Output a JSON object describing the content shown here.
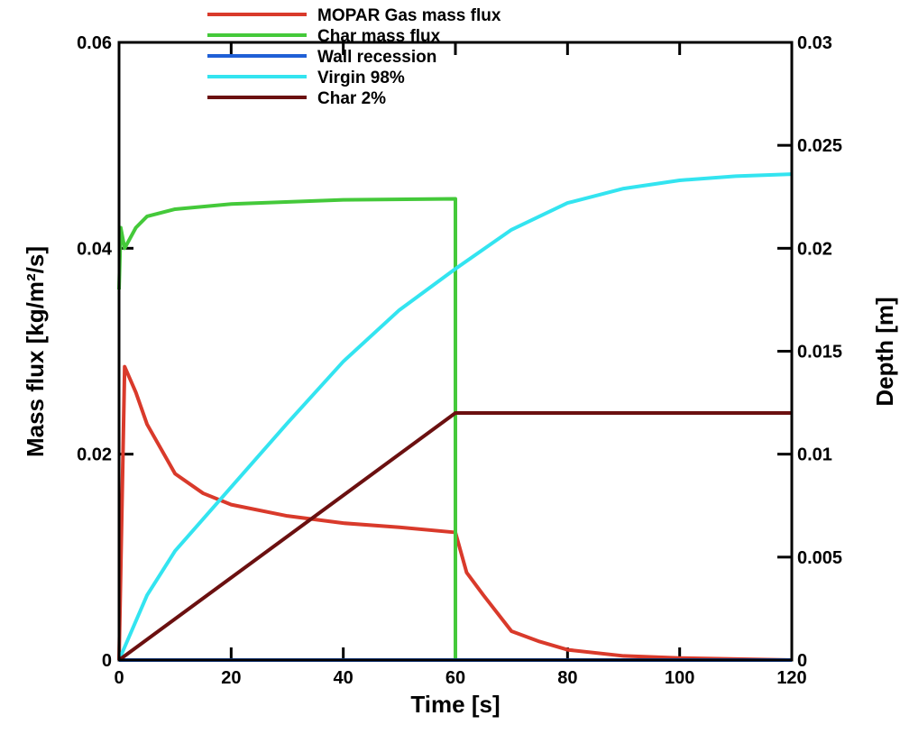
{
  "chart_data": {
    "type": "line",
    "x_label": "Time [s]",
    "y_label": "Mass flux [kg/m²/s]",
    "y2_label": "Depth [m]",
    "xlim": [
      0,
      120
    ],
    "xticks": [
      0,
      20,
      40,
      60,
      80,
      100,
      120
    ],
    "ylim": [
      0,
      0.06
    ],
    "yticks": [
      0,
      0.02,
      0.04,
      0.06
    ],
    "y2lim": [
      0,
      0.03
    ],
    "y2ticks": [
      0,
      0.005,
      0.01,
      0.015,
      0.02,
      0.025,
      0.03
    ],
    "legend": "top",
    "series": [
      {
        "name": "MOPAR Gas mass flux",
        "color": "#d93a2b",
        "x": [
          0,
          1,
          3,
          5,
          10,
          15,
          20,
          30,
          40,
          50,
          60,
          62,
          65,
          70,
          75,
          80,
          90,
          100,
          120
        ],
        "values": [
          0,
          0.0285,
          0.026,
          0.0229,
          0.0181,
          0.0162,
          0.0151,
          0.014,
          0.0133,
          0.0129,
          0.0124,
          0.0085,
          0.0063,
          0.0028,
          0.0018,
          0.001,
          0.0004,
          0.0002,
          0
        ]
      },
      {
        "name": "Char mass flux",
        "color": "#44c93a",
        "x": [
          0,
          0.3,
          1,
          3,
          5,
          10,
          20,
          40,
          60,
          60
        ],
        "values": [
          0.036,
          0.042,
          0.04,
          0.042,
          0.0431,
          0.0438,
          0.0443,
          0.0447,
          0.0448,
          0
        ]
      },
      {
        "name": "Wall recession",
        "color": "#1f5fd6",
        "axis": "y2",
        "x": [
          0,
          120
        ],
        "values": [
          0,
          0
        ]
      },
      {
        "name": "Virgin 98%",
        "color": "#33e4f0",
        "axis": "y2",
        "x": [
          0,
          5,
          10,
          20,
          30,
          40,
          50,
          60,
          70,
          80,
          90,
          100,
          110,
          120
        ],
        "values": [
          0,
          0.00315,
          0.0053,
          0.0084,
          0.0115,
          0.0145,
          0.017,
          0.019,
          0.0209,
          0.0222,
          0.0229,
          0.0233,
          0.0235,
          0.0236
        ]
      },
      {
        "name": "Char 2%",
        "color": "#6b1010",
        "axis": "y2",
        "x": [
          0,
          60,
          120
        ],
        "values": [
          0,
          0.012,
          0.012
        ]
      }
    ]
  }
}
